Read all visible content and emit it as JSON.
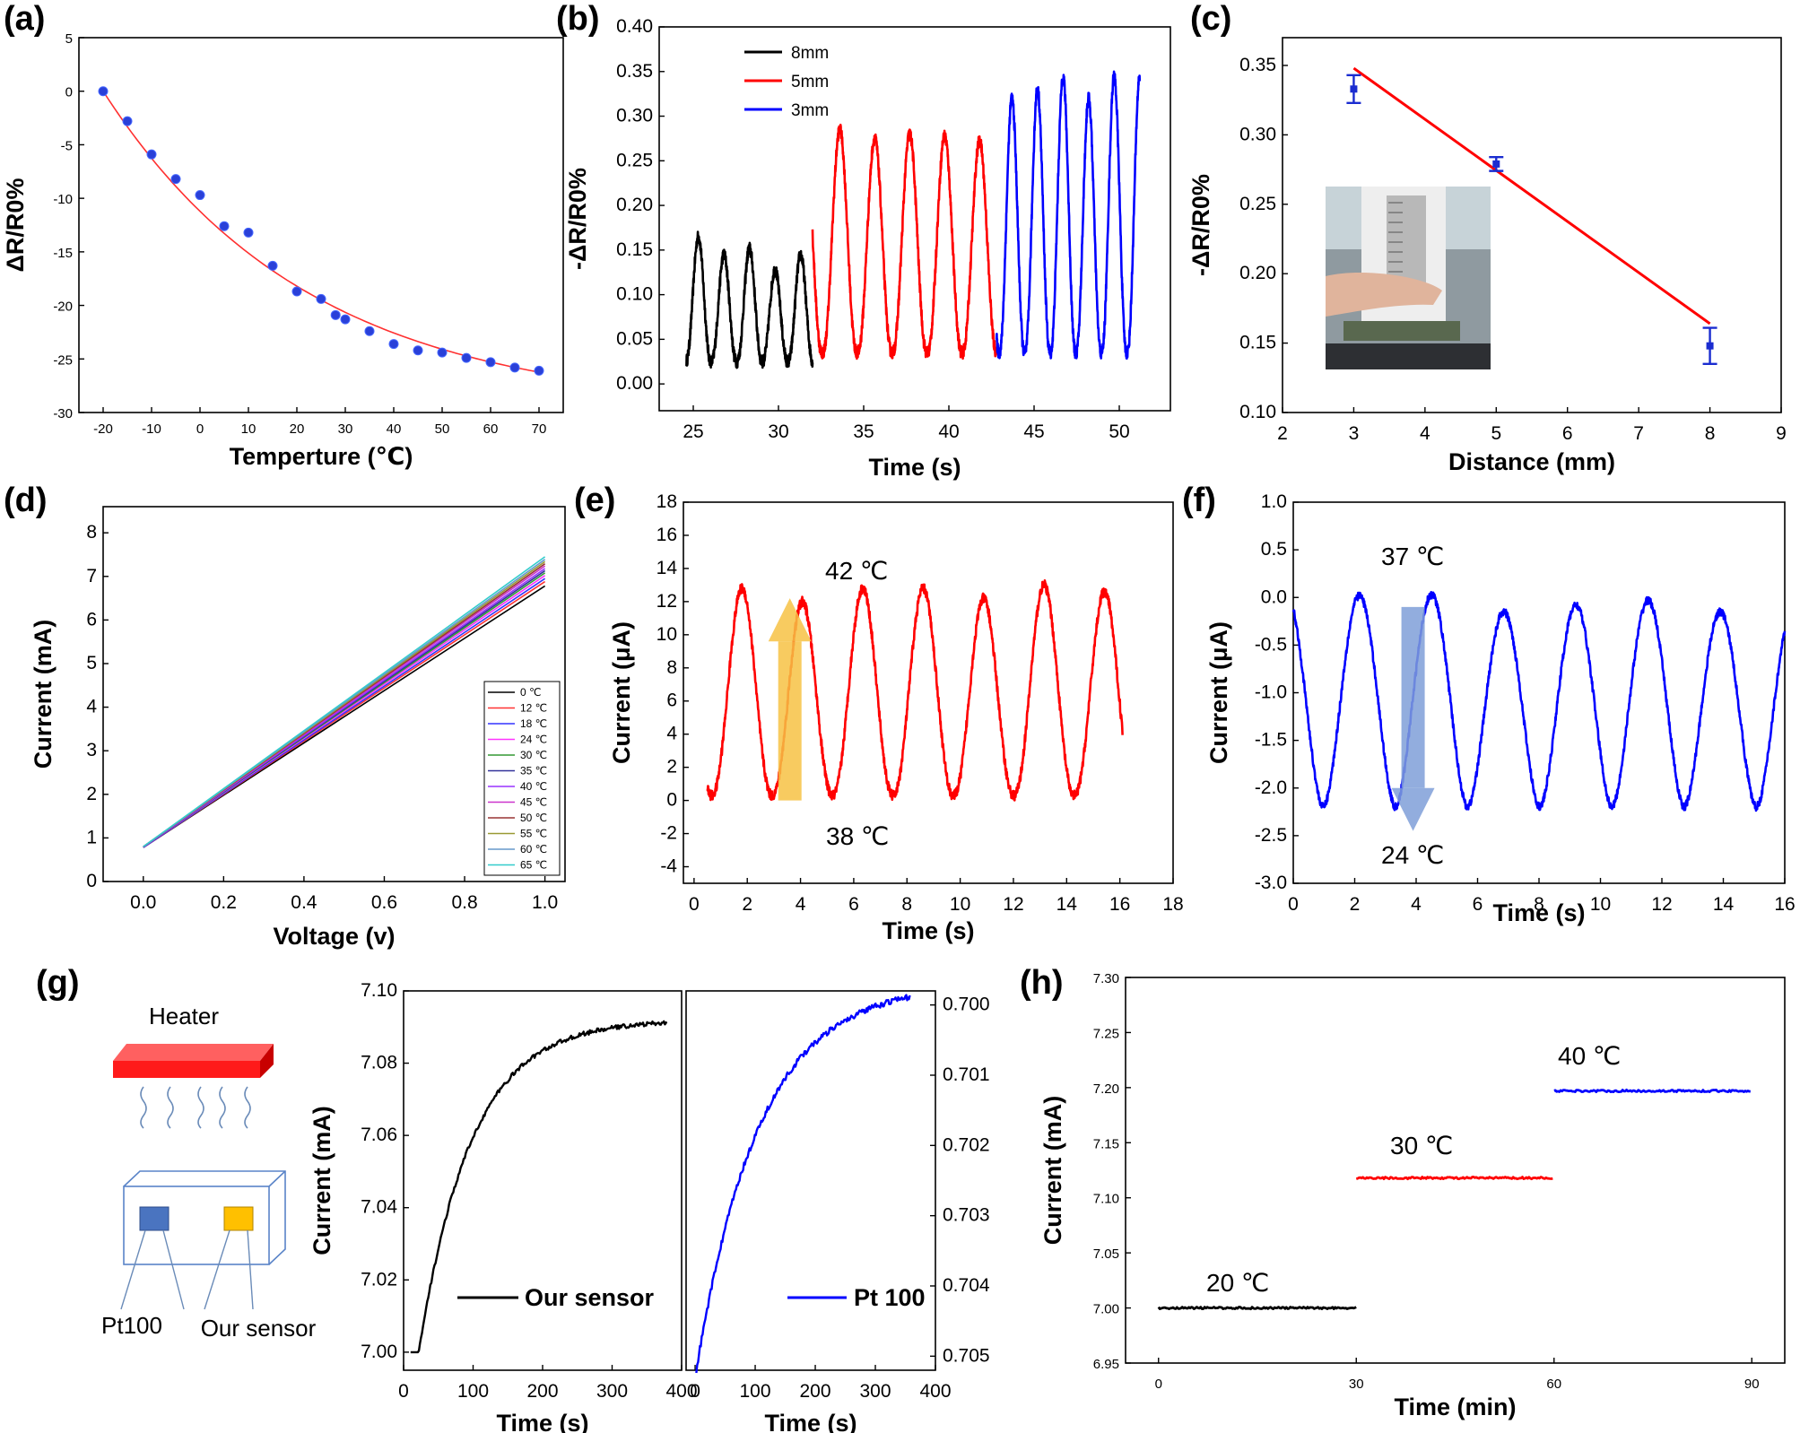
{
  "panel_labels": [
    "(a)",
    "(b)",
    "(c)",
    "(d)",
    "(e)",
    "(f)",
    "(g)",
    "(h)"
  ],
  "schematic": {
    "heater_label": "Heater",
    "pt100_label": "Pt100",
    "sensor_label": "Our sensor"
  },
  "colors": {
    "black": "#000000",
    "red": "#ff0000",
    "blue": "#0000ff",
    "fit_red": "#ff3030",
    "arrow_up": "#f7c244",
    "arrow_down": "#7f9fd8"
  },
  "chart_data": [
    {
      "id": "a",
      "type": "scatter",
      "xlabel": "Temperture (℃)",
      "ylabel": "ΔR/R0%",
      "xlim": [
        -25,
        75
      ],
      "ylim": [
        -30,
        5
      ],
      "xticks": [
        -20,
        -10,
        0,
        10,
        20,
        30,
        40,
        50,
        60,
        70
      ],
      "yticks": [
        -30,
        -25,
        -20,
        -15,
        -10,
        -5,
        0,
        5
      ],
      "points": {
        "x": [
          -20,
          -15,
          -10,
          -5,
          0,
          5,
          10,
          15,
          20,
          25,
          28,
          30,
          35,
          40,
          45,
          50,
          55,
          60,
          65,
          70
        ],
        "y": [
          0,
          -2.8,
          -5.9,
          -8.2,
          -9.7,
          -12.6,
          -13.2,
          -16.3,
          -18.7,
          -19.4,
          -20.9,
          -21.3,
          -22.4,
          -23.6,
          -24.2,
          -24.4,
          -24.9,
          -25.3,
          -25.8,
          -26.1
        ]
      },
      "fit": {
        "a": 29.8,
        "b": 0.0236,
        "x0": -20
      }
    },
    {
      "id": "b",
      "type": "line",
      "xlabel": "Time (s)",
      "ylabel": "-ΔR/R0%",
      "xlim": [
        23,
        53
      ],
      "ylim": [
        -0.03,
        0.4
      ],
      "xticks": [
        25,
        30,
        35,
        40,
        45,
        50
      ],
      "yticks": [
        0.0,
        0.05,
        0.1,
        0.15,
        0.2,
        0.25,
        0.3,
        0.35,
        0.4
      ],
      "legend": "top-left",
      "series": [
        {
          "name": "8mm",
          "color": "#000000",
          "t0": 24.6,
          "t1": 32.0,
          "period": 1.5,
          "phase": 25.3,
          "base": 0.025,
          "peaks": [
            0.165,
            0.145,
            0.152,
            0.128,
            0.145
          ]
        },
        {
          "name": "5mm",
          "color": "#ff0000",
          "t0": 32.0,
          "t1": 42.8,
          "period": 2.05,
          "phase": 33.6,
          "base": 0.035,
          "peaks": [
            0.285,
            0.275,
            0.28,
            0.278,
            0.272
          ]
        },
        {
          "name": "3mm",
          "color": "#0000ff",
          "t0": 42.8,
          "t1": 51.2,
          "period": 1.5,
          "phase": 43.7,
          "base": 0.035,
          "peaks": [
            0.32,
            0.33,
            0.345,
            0.32,
            0.345
          ]
        }
      ]
    },
    {
      "id": "c",
      "type": "scatter",
      "xlabel": "Distance (mm)",
      "ylabel": "-ΔR/R0%",
      "xlim": [
        2,
        9
      ],
      "ylim": [
        0.1,
        0.37
      ],
      "xticks": [
        2,
        3,
        4,
        5,
        6,
        7,
        8,
        9
      ],
      "yticks": [
        0.1,
        0.15,
        0.2,
        0.25,
        0.3,
        0.35
      ],
      "points": {
        "x": [
          3,
          5,
          8
        ],
        "y": [
          0.333,
          0.279,
          0.148
        ],
        "err": [
          0.01,
          0.005,
          0.013
        ]
      },
      "fit": {
        "x": [
          3,
          8
        ],
        "y": [
          0.348,
          0.164
        ]
      }
    },
    {
      "id": "d",
      "type": "line",
      "xlabel": "Voltage (v)",
      "ylabel": "Current (mA)",
      "xlim": [
        -0.1,
        1.05
      ],
      "ylim": [
        0,
        8.6
      ],
      "xticks": [
        0.0,
        0.2,
        0.4,
        0.6,
        0.8,
        1.0
      ],
      "yticks": [
        0,
        1,
        2,
        3,
        4,
        5,
        6,
        7,
        8
      ],
      "legend": "bottom-right",
      "series": [
        {
          "name": "0 ℃",
          "color": "#000000",
          "y0": 0.78,
          "y1": 6.78
        },
        {
          "name": "12 ℃",
          "color": "#ff3333",
          "y0": 0.78,
          "y1": 6.88
        },
        {
          "name": "18 ℃",
          "color": "#3333ff",
          "y0": 0.78,
          "y1": 6.95
        },
        {
          "name": "24 ℃",
          "color": "#ff33ff",
          "y0": 0.79,
          "y1": 7.02
        },
        {
          "name": "30 ℃",
          "color": "#339933",
          "y0": 0.79,
          "y1": 7.08
        },
        {
          "name": "35 ℃",
          "color": "#33339a",
          "y0": 0.79,
          "y1": 7.13
        },
        {
          "name": "40 ℃",
          "color": "#9933ff",
          "y0": 0.79,
          "y1": 7.18
        },
        {
          "name": "45 ℃",
          "color": "#cc33cc",
          "y0": 0.8,
          "y1": 7.24
        },
        {
          "name": "50 ℃",
          "color": "#993333",
          "y0": 0.8,
          "y1": 7.29
        },
        {
          "name": "55 ℃",
          "color": "#999933",
          "y0": 0.8,
          "y1": 7.34
        },
        {
          "name": "60 ℃",
          "color": "#6699cc",
          "y0": 0.8,
          "y1": 7.39
        },
        {
          "name": "65 ℃",
          "color": "#33cccc",
          "y0": 0.8,
          "y1": 7.45
        }
      ]
    },
    {
      "id": "e",
      "type": "line",
      "xlabel": "Time (s)",
      "ylabel": "Current (μA)",
      "xlim": [
        -0.4,
        18
      ],
      "ylim": [
        -5,
        18
      ],
      "xticks": [
        0,
        2,
        4,
        6,
        8,
        10,
        12,
        14,
        16,
        18
      ],
      "yticks": [
        -4,
        -2,
        0,
        2,
        4,
        6,
        8,
        10,
        12,
        14,
        16,
        18
      ],
      "annotations": [
        "42 ℃",
        "38 ℃"
      ],
      "series": [
        {
          "name": "",
          "color": "#ff0000",
          "t0": 0.5,
          "t1": 16.1,
          "period": 2.27,
          "phase": 1.8,
          "base": 0.3,
          "peaks": [
            12.8,
            12.0,
            12.8,
            12.8,
            12.2,
            13.0,
            12.6
          ]
        }
      ]
    },
    {
      "id": "f",
      "type": "line",
      "xlabel": "Time (s)",
      "ylabel": "Current (μA)",
      "xlim": [
        0,
        16
      ],
      "ylim": [
        -3.0,
        1.0
      ],
      "xticks": [
        0,
        2,
        4,
        6,
        8,
        10,
        12,
        14,
        16
      ],
      "yticks": [
        -3.0,
        -2.5,
        -2.0,
        -1.5,
        -1.0,
        -0.5,
        0.0,
        0.5,
        1.0
      ],
      "annotations": [
        "37 ℃",
        "24 ℃"
      ],
      "series": [
        {
          "name": "",
          "color": "#0000ff",
          "t0": 0.0,
          "t1": 16.0,
          "period": 2.35,
          "phase": 2.15,
          "base": -2.2,
          "peaks": [
            0.02,
            0.03,
            -0.15,
            -0.08,
            -0.03,
            -0.15,
            -0.15
          ]
        }
      ]
    },
    {
      "id": "g1",
      "type": "line",
      "xlabel": "Time (s)",
      "ylabel": "Current (mA)",
      "xlim": [
        0,
        400
      ],
      "ylim": [
        6.995,
        7.1
      ],
      "xticks": [
        0,
        100,
        200,
        300,
        400
      ],
      "yticks": [
        7.0,
        7.02,
        7.04,
        7.06,
        7.08,
        7.1
      ],
      "series": [
        {
          "name": "Our sensor",
          "color": "#000000",
          "t0": 10,
          "t1": 380,
          "delay": 22,
          "start": 7.0,
          "end": 7.092,
          "tau": 75
        }
      ]
    },
    {
      "id": "g2",
      "type": "line",
      "xlabel": "Time (s)",
      "ylabel": "",
      "xlim": [
        -15,
        400
      ],
      "ylim": [
        0.7052,
        0.6998
      ],
      "xticks": [
        0,
        100,
        200,
        300,
        400
      ],
      "yticks": [
        0.7,
        0.701,
        0.702,
        0.703,
        0.704,
        0.705
      ],
      "series": [
        {
          "name": "Pt 100",
          "color": "#0000ff",
          "t0": 2,
          "t1": 358,
          "start": 0.7052,
          "end": 0.6997,
          "tau": 105
        }
      ]
    },
    {
      "id": "h",
      "type": "line",
      "xlabel": "Time (min)",
      "ylabel": "Current (mA)",
      "xlim": [
        -5,
        95
      ],
      "ylim": [
        6.95,
        7.3
      ],
      "xticks": [
        0,
        30,
        60,
        90
      ],
      "yticks": [
        6.95,
        7.0,
        7.05,
        7.1,
        7.15,
        7.2,
        7.25,
        7.3
      ],
      "annotations": [
        "20 ℃",
        "30 ℃",
        "40 ℃"
      ],
      "series": [
        {
          "name": "20 ℃",
          "color": "#000000",
          "x": [
            0,
            30
          ],
          "level": 7.0
        },
        {
          "name": "30 ℃",
          "color": "#ff0000",
          "x": [
            30,
            60
          ],
          "level": 7.118
        },
        {
          "name": "40 ℃",
          "color": "#0000ff",
          "x": [
            60,
            90
          ],
          "level": 7.197
        }
      ]
    }
  ]
}
